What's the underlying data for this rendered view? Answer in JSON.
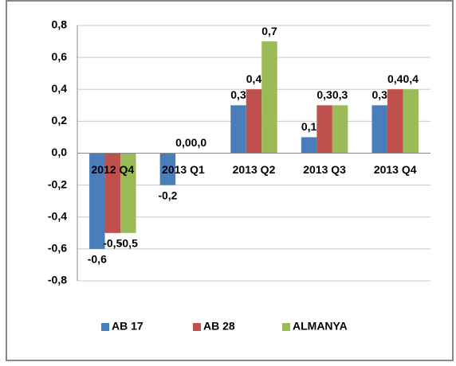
{
  "chart_data": {
    "type": "bar",
    "categories": [
      "2012 Q4",
      "2013 Q1",
      "2013 Q2",
      "2013 Q3",
      "2013 Q4"
    ],
    "series": [
      {
        "name": "AB 17",
        "color": "#4a7ebb",
        "values": [
          -0.6,
          -0.2,
          0.3,
          0.1,
          0.3
        ],
        "value_labels": [
          "-0,6",
          "-0,2",
          "0,3",
          "0,1",
          "0,3"
        ]
      },
      {
        "name": "AB 28",
        "color": "#c0504d",
        "values": [
          -0.5,
          0.0,
          0.4,
          0.3,
          0.4
        ],
        "value_labels": [
          "-0,5",
          "0,0",
          "0,4",
          "0,3",
          "0,4"
        ]
      },
      {
        "name": "ALMANYA",
        "color": "#9bbb59",
        "values": [
          -0.5,
          0.0,
          0.7,
          0.3,
          0.4
        ],
        "value_labels": [
          "-0,5",
          "0,0",
          "0,7",
          "0,3",
          "0,4"
        ]
      }
    ],
    "ylim": [
      -0.8,
      0.8
    ],
    "yticks": [
      {
        "value": -0.8,
        "label": "-0,8"
      },
      {
        "value": -0.6,
        "label": "-0,6"
      },
      {
        "value": -0.4,
        "label": "-0,4"
      },
      {
        "value": -0.2,
        "label": "-0,2"
      },
      {
        "value": 0.0,
        "label": "0,0"
      },
      {
        "value": 0.2,
        "label": "0,2"
      },
      {
        "value": 0.4,
        "label": "0,4"
      },
      {
        "value": 0.6,
        "label": "0,6"
      },
      {
        "value": 0.8,
        "label": "0,8"
      }
    ],
    "grid": true,
    "legend": "bottom"
  }
}
